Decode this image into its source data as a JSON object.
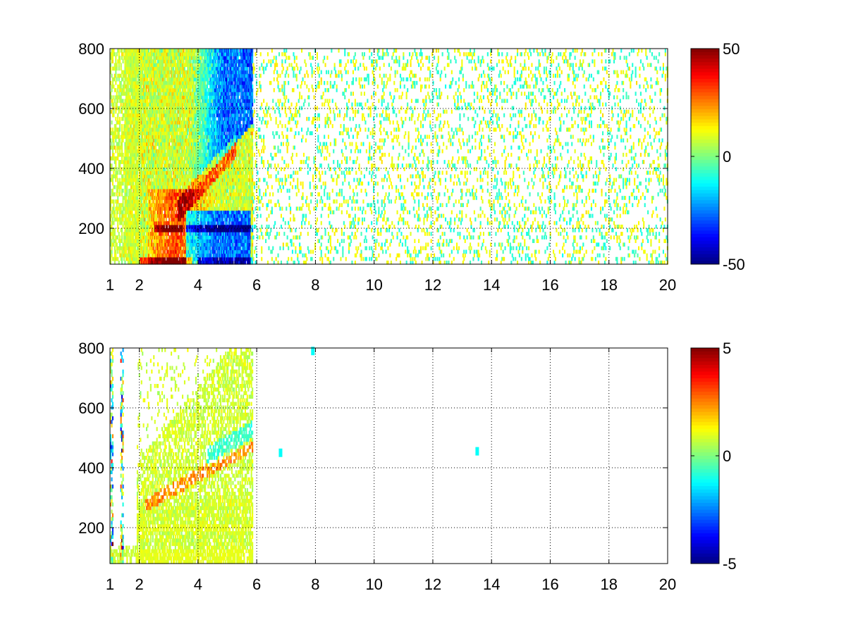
{
  "chart_data": [
    {
      "type": "heatmap",
      "title": "",
      "xlabel": "",
      "ylabel": "",
      "xlim": [
        1,
        20
      ],
      "ylim": [
        80,
        800
      ],
      "x_ticks": [
        1,
        2,
        4,
        6,
        8,
        10,
        12,
        14,
        16,
        18,
        20
      ],
      "x_tick_labels": [
        "1",
        "2",
        "4",
        "6",
        "8",
        "10",
        "12",
        "14",
        "16",
        "18",
        "20"
      ],
      "y_ticks": [
        200,
        400,
        600,
        800
      ],
      "y_tick_labels": [
        "200",
        "400",
        "600",
        "800"
      ],
      "grid": true,
      "grid_style": "dotted",
      "colormap": "jet",
      "colorbar": {
        "min": -50,
        "max": 50,
        "tick_labels": [
          "50",
          "0",
          "-50"
        ]
      },
      "dense_region_x": [
        1,
        5.8
      ],
      "sparse_region_x": [
        6,
        20
      ],
      "notable_rows": [
        90,
        200,
        310
      ],
      "positive_band_x": [
        2.5,
        4.5
      ],
      "negative_band_x": [
        3.8,
        5.8
      ]
    },
    {
      "type": "heatmap",
      "title": "",
      "xlabel": "",
      "ylabel": "",
      "xlim": [
        1,
        20
      ],
      "ylim": [
        80,
        800
      ],
      "x_ticks": [
        1,
        2,
        4,
        6,
        8,
        10,
        12,
        14,
        16,
        18,
        20
      ],
      "x_tick_labels": [
        "1",
        "2",
        "4",
        "6",
        "8",
        "10",
        "12",
        "14",
        "16",
        "18",
        "20"
      ],
      "y_ticks": [
        200,
        400,
        600,
        800
      ],
      "y_tick_labels": [
        "200",
        "400",
        "600",
        "800"
      ],
      "grid": true,
      "grid_style": "dotted",
      "colormap": "jet",
      "colorbar": {
        "min": -5,
        "max": 5,
        "tick_labels": [
          "5",
          "0",
          "-5"
        ]
      },
      "dense_region_x": [
        1.4,
        5.8
      ],
      "notable_rows": [
        90,
        200
      ],
      "isolated_cells": [
        [
          6.8,
          450
        ],
        [
          7.9,
          790
        ],
        [
          13.5,
          455
        ]
      ]
    }
  ]
}
